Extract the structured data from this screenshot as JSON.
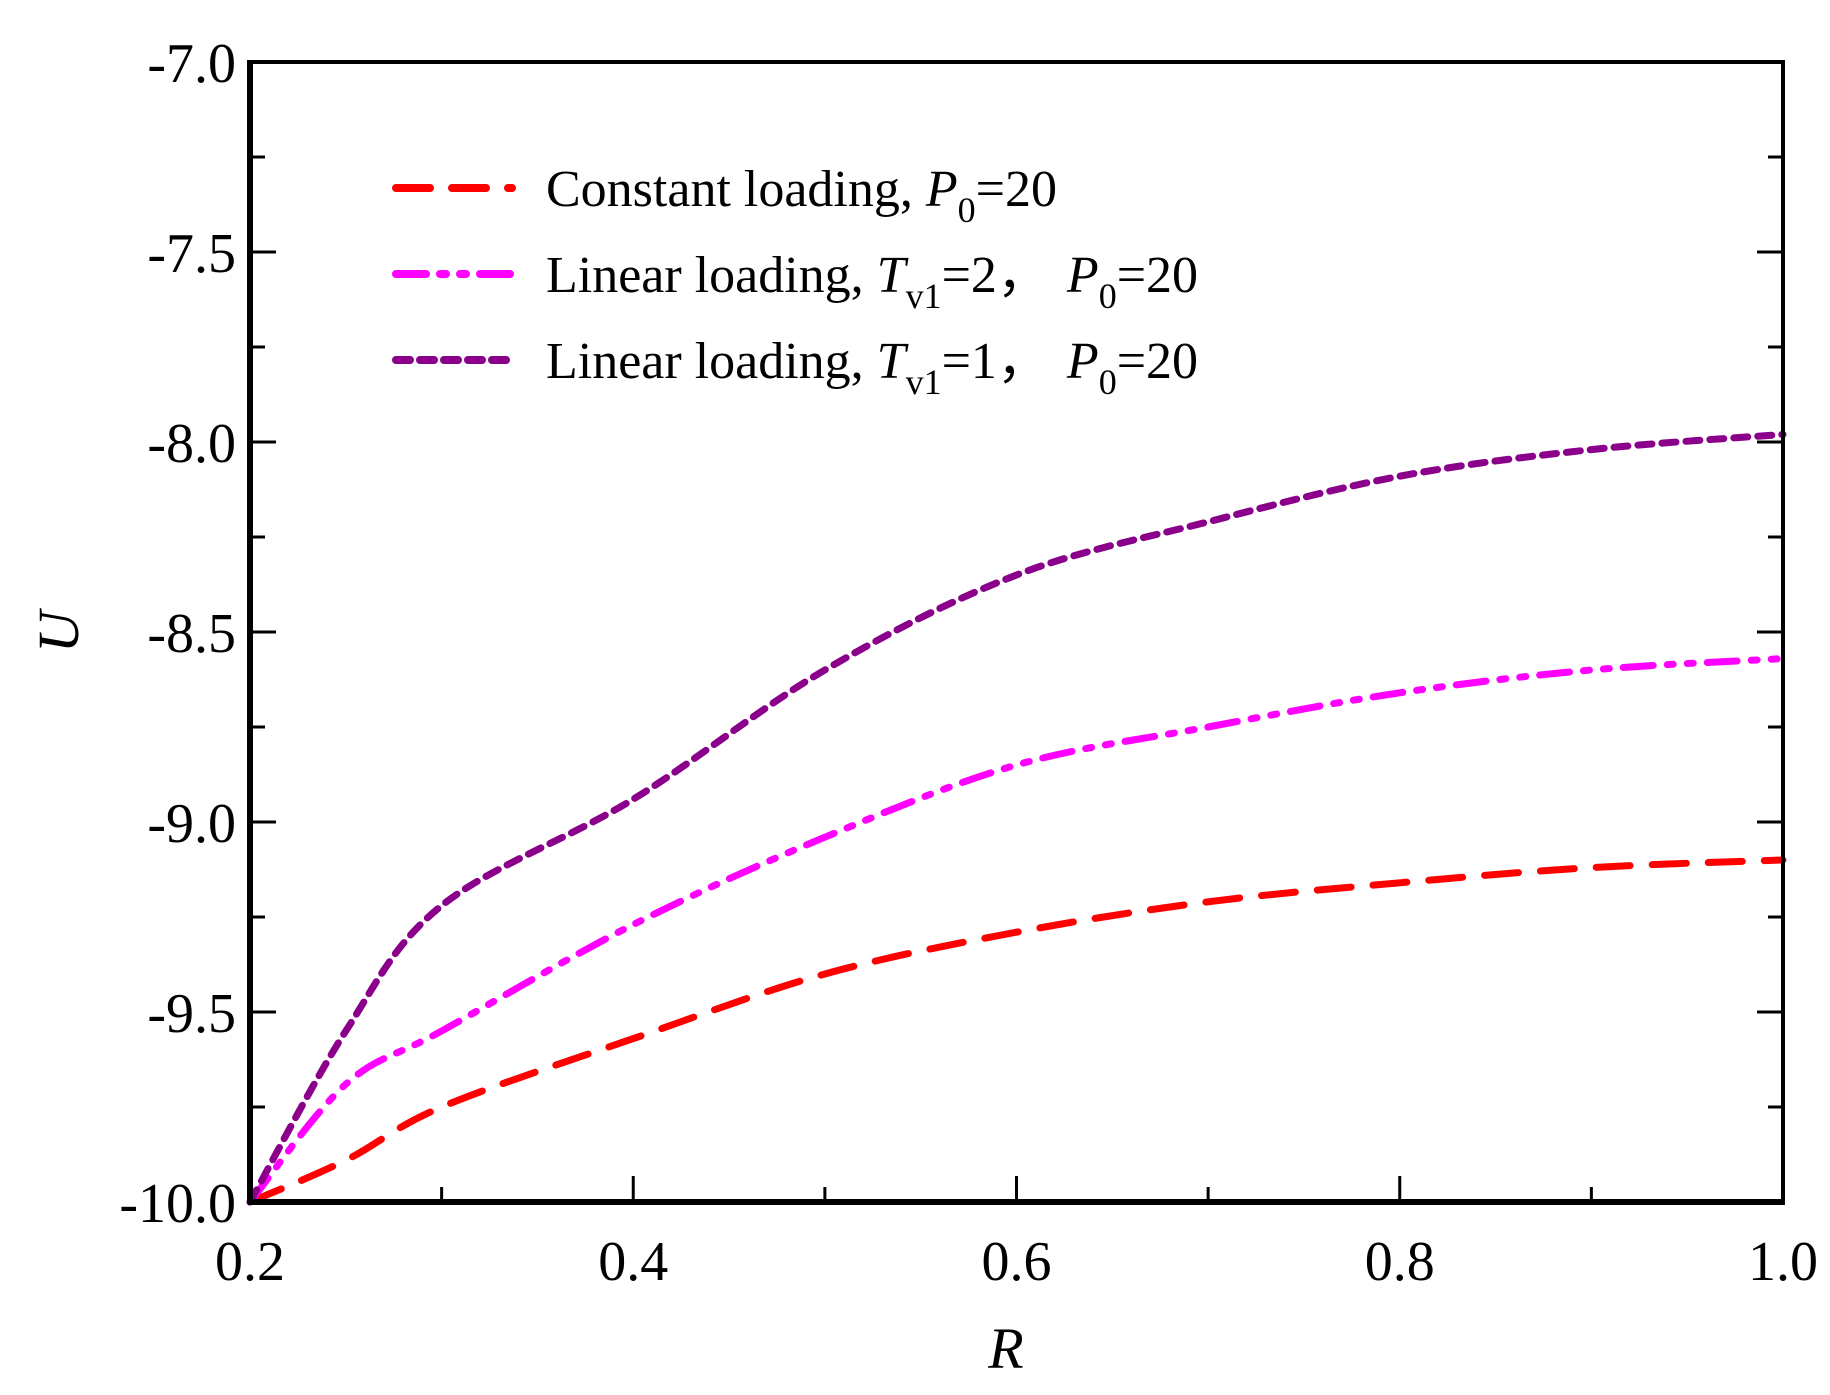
{
  "chart_data": {
    "type": "line",
    "title": "",
    "xlabel": "R",
    "ylabel": "U",
    "xlim": [
      0.2,
      1.0
    ],
    "ylim": [
      -10.0,
      -7.0
    ],
    "xticks": [
      "0.2",
      "0.4",
      "0.6",
      "0.8",
      "1.0"
    ],
    "xtick_values": [
      0.2,
      0.4,
      0.6,
      0.8,
      1.0
    ],
    "yticks": [
      "-10.0",
      "-9.5",
      "-9.0",
      "-8.5",
      "-8.0",
      "-7.5",
      "-7.0"
    ],
    "ytick_values": [
      -10.0,
      -9.5,
      -9.0,
      -8.5,
      -8.0,
      -7.5,
      -7.0
    ],
    "grid": false,
    "legend_position": "top-left",
    "x": [
      0.2,
      0.25,
      0.3,
      0.4,
      0.5,
      0.6,
      0.7,
      0.8,
      0.9,
      1.0
    ],
    "series": [
      {
        "name": "Constant loading, P0=20",
        "label_main": "Constant loading, ",
        "label_parts": [
          [
            "P",
            "0",
            "=20"
          ]
        ],
        "color": "#ff0000",
        "dash": "dash",
        "values": [
          -10.0,
          -9.89,
          -9.75,
          -9.57,
          -9.4,
          -9.29,
          -9.21,
          -9.16,
          -9.12,
          -9.1
        ]
      },
      {
        "name": "Linear loading, Tv1=2, P0=20",
        "label_main": "Linear loading, ",
        "label_parts": [
          [
            "T",
            "v1",
            "=2，"
          ],
          [
            "P",
            "0",
            "=20"
          ]
        ],
        "color": "#ff00ff",
        "dash": "dashdotdot",
        "values": [
          -10.0,
          -9.69,
          -9.55,
          -9.27,
          -9.04,
          -8.85,
          -8.75,
          -8.66,
          -8.6,
          -8.57
        ]
      },
      {
        "name": "Linear loading, Tv1=1, P0=20",
        "label_main": "Linear loading, ",
        "label_parts": [
          [
            "T",
            "v1",
            "=1，"
          ],
          [
            "P",
            "0",
            "=20"
          ]
        ],
        "color": "#8b008b",
        "dash": "shortdash",
        "values": [
          -10.0,
          -9.55,
          -9.22,
          -8.94,
          -8.6,
          -8.35,
          -8.21,
          -8.09,
          -8.02,
          -7.98
        ]
      }
    ]
  }
}
